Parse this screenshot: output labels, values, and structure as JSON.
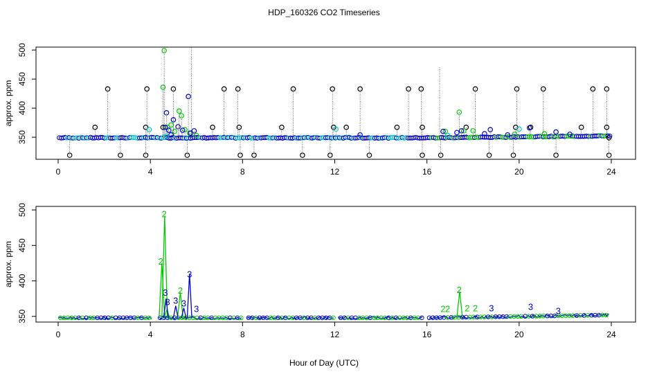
{
  "title": "HDP_160326  CO2 Timeseries",
  "xlabel": "Hour of Day (UTC)",
  "colors": {
    "black": "#000000",
    "green": "#00cc00",
    "blue": "#0000cc",
    "cyan": "#00cccc"
  },
  "chart_data": [
    {
      "type": "scatter",
      "name": "top-panel",
      "ylabel": "approx. ppm",
      "xlim": [
        0,
        24
      ],
      "ylim": [
        312,
        505
      ],
      "xticks": [
        0,
        4,
        8,
        12,
        16,
        20,
        24
      ],
      "yticks": [
        350,
        400,
        450,
        500
      ],
      "baseline": 349,
      "series": [
        {
          "color": "#000000",
          "points": [
            [
              1.6,
              367
            ],
            [
              2.15,
              433
            ],
            [
              3.8,
              367
            ],
            [
              3.85,
              433
            ],
            [
              4.55,
              367
            ],
            [
              5.0,
              433
            ],
            [
              6.7,
              367
            ],
            [
              7.2,
              433
            ],
            [
              7.8,
              433
            ],
            [
              7.85,
              367
            ],
            [
              9.7,
              367
            ],
            [
              10.2,
              433
            ],
            [
              11.9,
              433
            ],
            [
              11.95,
              367
            ],
            [
              12.5,
              367
            ],
            [
              13.1,
              433
            ],
            [
              14.7,
              367
            ],
            [
              15.2,
              433
            ],
            [
              15.75,
              433
            ],
            [
              15.8,
              367
            ],
            [
              17.7,
              367
            ],
            [
              18.1,
              433
            ],
            [
              19.85,
              367
            ],
            [
              19.9,
              433
            ],
            [
              20.5,
              367
            ],
            [
              21.05,
              433
            ],
            [
              22.7,
              367
            ],
            [
              23.2,
              433
            ],
            [
              23.8,
              433
            ],
            [
              23.8,
              367
            ],
            [
              23.9,
              349
            ],
            [
              0.5,
              319
            ],
            [
              2.7,
              319
            ],
            [
              3.8,
              319
            ],
            [
              5.6,
              319
            ],
            [
              7.9,
              319
            ],
            [
              8.5,
              319
            ],
            [
              10.6,
              319
            ],
            [
              11.8,
              319
            ],
            [
              13.5,
              319
            ],
            [
              15.8,
              319
            ],
            [
              16.6,
              319
            ],
            [
              18.7,
              319
            ],
            [
              19.75,
              319
            ],
            [
              21.6,
              319
            ],
            [
              23.9,
              319
            ]
          ]
        },
        {
          "color": "#00cc00",
          "points": [
            [
              4.55,
              436
            ],
            [
              4.6,
              499
            ],
            [
              4.75,
              367
            ],
            [
              4.9,
              371
            ],
            [
              5.05,
              360
            ],
            [
              5.25,
              395
            ],
            [
              5.35,
              387
            ],
            [
              5.5,
              363
            ],
            [
              5.7,
              357
            ],
            [
              6.0,
              353
            ],
            [
              16.8,
              360
            ],
            [
              17.4,
              393
            ],
            [
              17.6,
              361
            ],
            [
              18.0,
              361
            ],
            [
              19.8,
              355
            ],
            [
              21.1,
              356
            ]
          ]
        },
        {
          "color": "#0000cc",
          "points": [
            [
              4.65,
              367
            ],
            [
              4.7,
              392
            ],
            [
              4.8,
              362
            ],
            [
              4.9,
              354
            ],
            [
              5.0,
              380
            ],
            [
              5.2,
              368
            ],
            [
              5.4,
              362
            ],
            [
              5.65,
              420
            ],
            [
              5.75,
              357
            ],
            [
              5.9,
              361
            ],
            [
              13.1,
              354
            ],
            [
              16.7,
              360
            ],
            [
              17.3,
              358
            ],
            [
              17.5,
              361
            ],
            [
              18.5,
              356
            ],
            [
              18.75,
              363
            ],
            [
              19.5,
              354
            ],
            [
              20.45,
              366
            ],
            [
              21.6,
              359
            ],
            [
              22.2,
              355
            ]
          ]
        },
        {
          "color": "#00cccc",
          "points": [
            [
              3.95,
              363
            ],
            [
              4.7,
              352
            ],
            [
              12.05,
              364
            ],
            [
              16.9,
              353
            ],
            [
              20.0,
              364
            ]
          ]
        }
      ]
    },
    {
      "type": "line",
      "name": "bottom-panel",
      "ylabel": "approx. ppm",
      "xlim": [
        0,
        24
      ],
      "ylim": [
        342,
        505
      ],
      "xticks": [
        0,
        4,
        8,
        12,
        16,
        20,
        24
      ],
      "yticks": [
        350,
        400,
        450,
        500
      ],
      "gaps": [
        [
          4.05,
          4.35
        ],
        [
          7.95,
          8.15
        ],
        [
          12.0,
          12.15
        ],
        [
          15.85,
          16.1
        ]
      ],
      "labels": [
        {
          "text": "2",
          "color": "#00cc00",
          "x": 4.45,
          "y": 427
        },
        {
          "text": "2",
          "color": "#00cc00",
          "x": 4.6,
          "y": 494
        },
        {
          "text": "3",
          "color": "#0000cc",
          "x": 4.65,
          "y": 383
        },
        {
          "text": "3",
          "color": "#0000cc",
          "x": 4.75,
          "y": 370
        },
        {
          "text": "3",
          "color": "#0000cc",
          "x": 5.1,
          "y": 372
        },
        {
          "text": "2",
          "color": "#00cc00",
          "x": 5.3,
          "y": 386
        },
        {
          "text": "3",
          "color": "#0000cc",
          "x": 5.45,
          "y": 368
        },
        {
          "text": "3",
          "color": "#0000cc",
          "x": 5.7,
          "y": 409
        },
        {
          "text": "3",
          "color": "#0000cc",
          "x": 6.0,
          "y": 360
        },
        {
          "text": "2",
          "color": "#00cc00",
          "x": 16.7,
          "y": 360
        },
        {
          "text": "2",
          "color": "#00cc00",
          "x": 16.9,
          "y": 360
        },
        {
          "text": "2",
          "color": "#00cc00",
          "x": 17.4,
          "y": 387
        },
        {
          "text": "2",
          "color": "#00cc00",
          "x": 17.75,
          "y": 361
        },
        {
          "text": "2",
          "color": "#00cc00",
          "x": 18.1,
          "y": 361
        },
        {
          "text": "3",
          "color": "#0000cc",
          "x": 18.8,
          "y": 361
        },
        {
          "text": "3",
          "color": "#0000cc",
          "x": 20.5,
          "y": 363
        },
        {
          "text": "3",
          "color": "#0000cc",
          "x": 21.7,
          "y": 357
        }
      ],
      "green_peaks": [
        [
          4.5,
          425
        ],
        [
          4.62,
          492
        ],
        [
          4.72,
          360
        ],
        [
          5.3,
          384
        ],
        [
          17.42,
          385
        ]
      ],
      "blue_peaks": [
        [
          4.68,
          375
        ],
        [
          5.7,
          410
        ],
        [
          5.1,
          365
        ],
        [
          5.45,
          362
        ]
      ]
    }
  ]
}
